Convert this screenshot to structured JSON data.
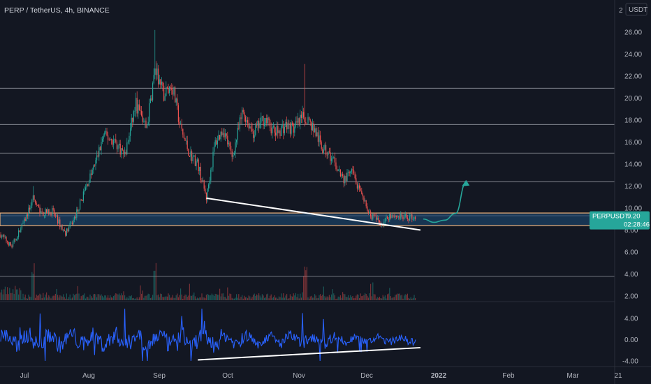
{
  "header": {
    "title": "PERP / TetherUS, 4h, BINANCE",
    "currency": "USDT",
    "top_tick": "2"
  },
  "price_tag": {
    "symbol": "PERPUSDT",
    "price": "9.20",
    "countdown": "02:28:46"
  },
  "colors": {
    "background": "#131722",
    "candle_up": "#26a69a",
    "candle_down": "#ef5350",
    "oscillator": "#2962ff",
    "support_zone": "#1e4f7a",
    "tag": "#26a69a"
  },
  "chart_data": [
    {
      "type": "candlestick",
      "title": "PERP / TetherUS, 4h, BINANCE",
      "ylim": [
        1.5,
        27
      ],
      "y_ticks": [
        "26.00",
        "24.00",
        "22.00",
        "20.00",
        "18.00",
        "16.00",
        "14.00",
        "12.00",
        "10.00",
        "8.00",
        "6.00",
        "4.00",
        "2.00"
      ],
      "x_ticks": [
        "Jul",
        "Aug",
        "Sep",
        "Oct",
        "Nov",
        "Dec",
        "2022",
        "Feb",
        "Mar",
        "21"
      ],
      "path": [
        [
          "2021-06-20",
          7.6
        ],
        [
          "2021-06-25",
          6.5
        ],
        [
          "2021-07-01",
          8.8
        ],
        [
          "2021-07-05",
          10.8
        ],
        [
          "2021-07-09",
          9.5
        ],
        [
          "2021-07-14",
          9.7
        ],
        [
          "2021-07-20",
          7.7
        ],
        [
          "2021-07-24",
          8.9
        ],
        [
          "2021-07-29",
          11.5
        ],
        [
          "2021-08-03",
          14.0
        ],
        [
          "2021-08-07",
          16.6
        ],
        [
          "2021-08-12",
          16.1
        ],
        [
          "2021-08-17",
          14.8
        ],
        [
          "2021-08-22",
          19.5
        ],
        [
          "2021-08-27",
          17.2
        ],
        [
          "2021-08-31",
          22.6
        ],
        [
          "2021-09-04",
          20.3
        ],
        [
          "2021-09-08",
          21.2
        ],
        [
          "2021-09-12",
          17.2
        ],
        [
          "2021-09-16",
          15.0
        ],
        [
          "2021-09-20",
          14.0
        ],
        [
          "2021-09-24",
          10.9
        ],
        [
          "2021-09-28",
          15.9
        ],
        [
          "2021-10-02",
          17.2
        ],
        [
          "2021-10-06",
          14.6
        ],
        [
          "2021-10-11",
          18.8
        ],
        [
          "2021-10-16",
          16.8
        ],
        [
          "2021-10-21",
          18.2
        ],
        [
          "2021-10-26",
          16.8
        ],
        [
          "2021-10-31",
          17.5
        ],
        [
          "2021-11-04",
          17.2
        ],
        [
          "2021-11-09",
          18.4
        ],
        [
          "2021-11-13",
          17.3
        ],
        [
          "2021-11-17",
          15.5
        ],
        [
          "2021-11-22",
          14.4
        ],
        [
          "2021-11-27",
          12.5
        ],
        [
          "2021-12-01",
          13.3
        ],
        [
          "2021-12-05",
          11.2
        ],
        [
          "2021-12-10",
          9.3
        ],
        [
          "2021-12-15",
          8.6
        ],
        [
          "2021-12-19",
          9.4
        ],
        [
          "2021-12-25",
          9.1
        ],
        [
          "2021-12-31",
          9.2
        ]
      ],
      "spikes": [
        [
          "2021-08-31",
          26.2
        ],
        [
          "2021-11-09",
          23.1
        ],
        [
          "2021-07-05",
          12.0
        ]
      ],
      "horizontal_levels": [
        20.9,
        17.6,
        15.0,
        12.4,
        9.3,
        3.8
      ],
      "support_zone": [
        8.4,
        9.55
      ],
      "trendline": [
        [
          "2021-09-24",
          10.9
        ],
        [
          "2022-01-02",
          8.0
        ]
      ],
      "projection": [
        [
          "2022-01-02",
          9.0
        ],
        [
          "2022-01-07",
          8.7
        ],
        [
          "2022-01-12",
          8.9
        ],
        [
          "2022-01-17",
          9.5
        ],
        [
          "2022-01-22",
          12.3
        ]
      ],
      "last_price": 9.2
    },
    {
      "type": "line",
      "name": "oscillator",
      "ylim": [
        -4.4,
        6.2
      ],
      "y_ticks": [
        "4.00",
        "0.00",
        "-4.00"
      ],
      "trendline": [
        [
          "2021-09-20",
          -3.8
        ],
        [
          "2022-01-02",
          -1.5
        ]
      ]
    }
  ]
}
